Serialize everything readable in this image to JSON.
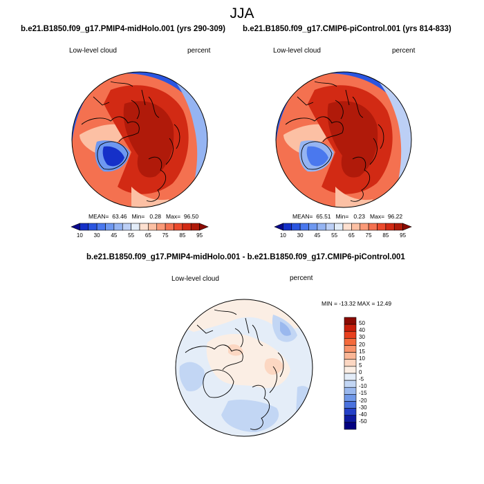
{
  "title": "JJA",
  "panels": [
    {
      "case": "b.e21.B1850.f09_g17.PMIP4-midHolo.001 (yrs 290-309)",
      "variable": "Low-level cloud",
      "units": "percent",
      "stats": {
        "mean_label": "MEAN=",
        "mean": "63.46",
        "min_label": "Min=",
        "min": "0.28",
        "max_label": "Max=",
        "max": "96.50"
      }
    },
    {
      "case": "b.e21.B1850.f09_g17.CMIP6-piControl.001 (yrs 814-833)",
      "variable": "Low-level cloud",
      "units": "percent",
      "stats": {
        "mean_label": "MEAN=",
        "mean": "65.51",
        "min_label": "Min=",
        "min": "0.23",
        "max_label": "Max=",
        "max": "96.22"
      }
    }
  ],
  "colorbar_abs": {
    "tick_labels": [
      "10",
      "30",
      "45",
      "55",
      "65",
      "75",
      "85",
      "95"
    ],
    "colors": [
      "#0a0a8c",
      "#1530c8",
      "#2a55e0",
      "#4a78ee",
      "#6e98f0",
      "#95b4f2",
      "#bccff5",
      "#e2ecf8",
      "#fde0d0",
      "#fcc0a4",
      "#fa9a78",
      "#f47150",
      "#ec4a2c",
      "#d22a14",
      "#b01a0a",
      "#8a0a02"
    ]
  },
  "difference": {
    "title": "b.e21.B1850.f09_g17.PMIP4-midHolo.001 - b.e21.B1850.f09_g17.CMIP6-piControl.001",
    "variable": "Low-level cloud",
    "units": "percent",
    "minmax": "MIN = -13.32 MAX =  12.49",
    "levels": [
      "50",
      "40",
      "30",
      "20",
      "15",
      "10",
      "5",
      "0",
      "-5",
      "-10",
      "-15",
      "-20",
      "-30",
      "-40",
      "-50"
    ],
    "colors": [
      "#8a0a02",
      "#c81e0a",
      "#e8401e",
      "#f46a3c",
      "#f8926a",
      "#fab696",
      "#fcd7c2",
      "#fbeee4",
      "#e4edf8",
      "#c2d6f4",
      "#9ab8ee",
      "#7098e8",
      "#4a72de",
      "#2440c8",
      "#0e1aa0",
      "#020080"
    ]
  }
}
